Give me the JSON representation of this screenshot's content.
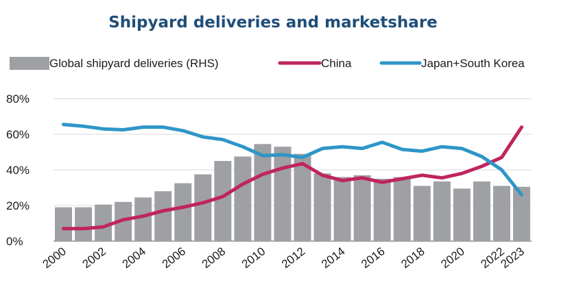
{
  "chart_data": {
    "type": "bar+line",
    "title": "Shipyard deliveries and marketshare",
    "x": [
      2000,
      2001,
      2002,
      2003,
      2004,
      2005,
      2006,
      2007,
      2008,
      2009,
      2010,
      2011,
      2012,
      2013,
      2014,
      2015,
      2016,
      2017,
      2018,
      2019,
      2020,
      2021,
      2022,
      2023
    ],
    "x_tick_labels": [
      "2000",
      "2002",
      "2004",
      "2006",
      "2008",
      "2010",
      "2012",
      "2014",
      "2016",
      "2018",
      "2020",
      "2022",
      "2023"
    ],
    "x_tick_years": [
      2000,
      2002,
      2004,
      2006,
      2008,
      2010,
      2012,
      2014,
      2016,
      2018,
      2020,
      2022,
      2023
    ],
    "ylim": [
      0,
      80
    ],
    "y_ticks": [
      0,
      20,
      40,
      60,
      80
    ],
    "y_tick_labels": [
      "0%",
      "20%",
      "40%",
      "60%",
      "80%"
    ],
    "gridlines": true,
    "legend_position": "top",
    "series": [
      {
        "name": "Global shipyard deliveries (RHS)",
        "kind": "bar",
        "color": "#9ea0a3",
        "values": [
          19,
          19,
          20.5,
          22,
          24.5,
          28,
          32.5,
          37.5,
          45,
          47.5,
          54.5,
          53,
          49,
          38,
          36,
          37,
          35,
          36,
          31,
          33.5,
          29.5,
          33.5,
          31,
          30.5
        ]
      },
      {
        "name": "China",
        "kind": "line",
        "color": "#c0245e",
        "values": [
          7,
          7,
          8,
          12,
          14,
          17,
          19,
          21.5,
          25,
          32,
          37.5,
          41,
          43.5,
          37,
          34,
          35.5,
          33,
          35,
          37,
          35.5,
          38,
          42,
          47,
          64
        ]
      },
      {
        "name": "Japan+South Korea",
        "kind": "line",
        "color": "#2e96c8",
        "values": [
          65.5,
          64.5,
          63,
          62.5,
          64,
          64,
          62,
          58.5,
          57,
          53,
          48,
          48.5,
          47,
          52,
          53,
          52,
          55.5,
          51.5,
          50.5,
          53,
          52,
          47.5,
          40,
          26
        ]
      }
    ]
  }
}
